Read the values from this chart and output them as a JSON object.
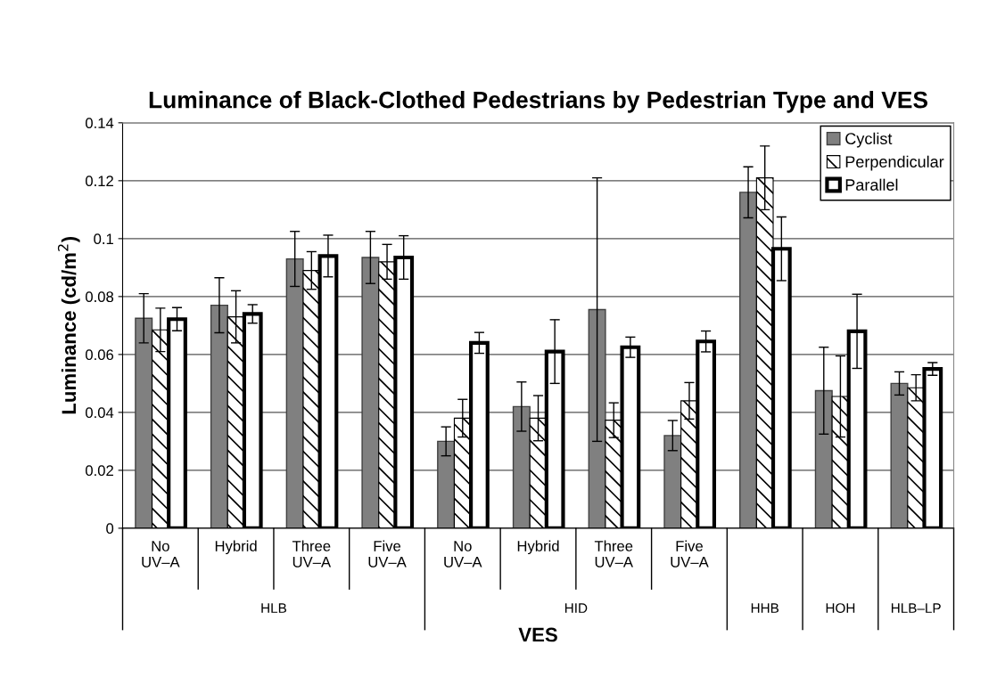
{
  "chart_data": {
    "type": "bar",
    "title": "Luminance of Black-Clothed Pedestrians by Pedestrian Type and VES",
    "xlabel": "VES",
    "ylabel": "Luminance (cd/m$^{2}$)",
    "categories": [
      "No UV–A",
      "Hybrid",
      "Three UV–A",
      "Five UV–A",
      "No UV–A",
      "Hybrid",
      "Three UV–A",
      "Five UV–A",
      null,
      null,
      null
    ],
    "annotations": [
      "HLB",
      "HID",
      "HHB",
      "HOH",
      "HLB–LP"
    ],
    "series": [
      {
        "name": "Cyclist",
        "color": "#808080",
        "values": [
          0.0725,
          0.077,
          0.093,
          0.0935,
          0.03,
          0.042,
          0.0755,
          0.032,
          0.116,
          0.0475,
          0.05
        ],
        "errors": [
          0.0085,
          0.0095,
          0.0095,
          0.009,
          0.005,
          0.0085,
          0.0455,
          0.0052,
          0.0088,
          0.015,
          0.004
        ]
      },
      {
        "name": "Perpendicular",
        "color": "#000000",
        "values": [
          0.0685,
          0.073,
          0.089,
          0.092,
          0.038,
          0.038,
          0.0373,
          0.044,
          0.121,
          0.0455,
          0.0485
        ],
        "errors": [
          0.0075,
          0.009,
          0.0065,
          0.006,
          0.0065,
          0.0078,
          0.006,
          0.0063,
          0.011,
          0.014,
          0.0045
        ]
      },
      {
        "name": "Parallel",
        "color": "#ffffff",
        "values": [
          0.0722,
          0.074,
          0.094,
          0.0935,
          0.064,
          0.061,
          0.0625,
          0.0645,
          0.0965,
          0.068,
          0.055
        ],
        "errors": [
          0.004,
          0.0032,
          0.0072,
          0.0075,
          0.0036,
          0.011,
          0.0035,
          0.0036,
          0.011,
          0.0128,
          0.0022
        ]
      }
    ],
    "ylim": [
      0,
      0.14
    ],
    "yticks": [
      0,
      0.02,
      0.04,
      {
        "value": 0.06,
        "label": "0.06"
      },
      0.08,
      {
        "value": 0.1,
        "label": "0.1"
      },
      0.12,
      0.14
    ],
    "grid": "y",
    "legend": "top right"
  }
}
